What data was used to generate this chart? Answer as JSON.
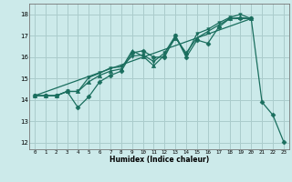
{
  "xlabel": "Humidex (Indice chaleur)",
  "bg_color": "#cceaea",
  "grid_color": "#aacccc",
  "line_color": "#1a6e5e",
  "xlim": [
    -0.5,
    23.5
  ],
  "ylim": [
    11.7,
    18.5
  ],
  "xticks": [
    0,
    1,
    2,
    3,
    4,
    5,
    6,
    7,
    8,
    9,
    10,
    11,
    12,
    13,
    14,
    15,
    16,
    17,
    18,
    19,
    20,
    21,
    22,
    23
  ],
  "yticks": [
    12,
    13,
    14,
    15,
    16,
    17,
    18
  ],
  "lines": [
    {
      "x": [
        0,
        1,
        2,
        3,
        4,
        5,
        6,
        7,
        8,
        9,
        10,
        11,
        12,
        13,
        14,
        15,
        16,
        17,
        18,
        19,
        20,
        21,
        22,
        23
      ],
      "y": [
        14.2,
        14.2,
        14.2,
        14.4,
        13.65,
        14.15,
        14.85,
        15.15,
        15.35,
        16.2,
        16.3,
        16.0,
        16.0,
        17.0,
        16.0,
        16.8,
        16.65,
        17.4,
        17.8,
        17.8,
        17.8,
        13.9,
        13.3,
        12.05
      ],
      "marker": "D",
      "markersize": 2.5,
      "lw": 0.9
    },
    {
      "x": [
        0,
        1,
        2,
        3,
        4,
        5,
        6,
        7,
        8,
        9,
        10,
        11,
        12,
        13,
        14,
        15,
        16,
        17,
        18,
        19,
        20
      ],
      "y": [
        14.2,
        14.2,
        14.2,
        14.4,
        14.4,
        14.85,
        15.15,
        15.35,
        15.45,
        16.3,
        16.05,
        15.6,
        16.1,
        16.9,
        16.2,
        16.9,
        17.2,
        17.5,
        17.8,
        17.85,
        17.8
      ],
      "marker": "^",
      "markersize": 3.0,
      "lw": 0.9
    },
    {
      "x": [
        0,
        1,
        2,
        3,
        4,
        5,
        6,
        7,
        8,
        9,
        10,
        11,
        12,
        13,
        14,
        15,
        16,
        17,
        18,
        19,
        20
      ],
      "y": [
        14.2,
        14.2,
        14.2,
        14.4,
        14.4,
        15.05,
        15.25,
        15.5,
        15.55,
        16.05,
        16.1,
        15.8,
        16.2,
        17.0,
        16.1,
        17.1,
        17.3,
        17.6,
        17.85,
        18.0,
        17.8
      ],
      "marker": "v",
      "markersize": 2.5,
      "lw": 0.9
    },
    {
      "x": [
        0,
        20
      ],
      "y": [
        14.2,
        17.8
      ],
      "marker": null,
      "markersize": 0,
      "lw": 0.9
    }
  ]
}
